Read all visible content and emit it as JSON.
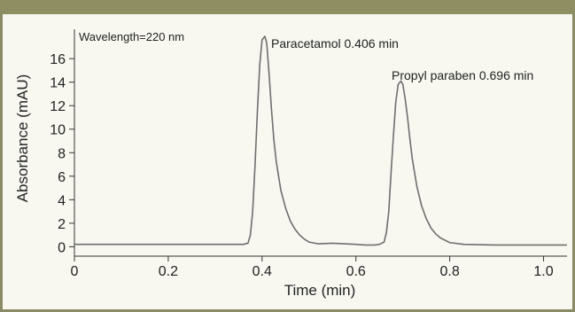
{
  "chart_data": {
    "type": "line",
    "title": "",
    "xlabel": "Time (min)",
    "ylabel": "Absorbance (mAU)",
    "xlim": [
      0,
      1.05
    ],
    "ylim": [
      -0.8,
      18.5
    ],
    "x_ticks": [
      0,
      0.2,
      0.4,
      0.6,
      0.8,
      1.0
    ],
    "x_tick_labels": [
      "0",
      "0.2",
      "0.4",
      "0.6",
      "0.8",
      "1.0"
    ],
    "y_ticks": [
      0,
      2,
      4,
      6,
      8,
      10,
      12,
      14,
      16
    ],
    "y_tick_labels": [
      "0",
      "2",
      "4",
      "6",
      "8",
      "10",
      "12",
      "14",
      "16"
    ],
    "grid": false,
    "legend": "none",
    "annotations": {
      "wavelength": "Wavelength=220 nm",
      "peak1": "Paracetamol 0.406 min",
      "peak2": "Propyl paraben 0.696 min"
    },
    "peaks": [
      {
        "name": "Paracetamol",
        "retention_time": 0.406,
        "height": 17.9
      },
      {
        "name": "Propyl paraben",
        "retention_time": 0.696,
        "height": 14.1
      }
    ],
    "series": [
      {
        "x": [
          0,
          0.36,
          0.37,
          0.375,
          0.38,
          0.385,
          0.39,
          0.395,
          0.4,
          0.406,
          0.41,
          0.415,
          0.42,
          0.425,
          0.43,
          0.44,
          0.45,
          0.46,
          0.47,
          0.48,
          0.49,
          0.5,
          0.52,
          0.55,
          0.6,
          0.62,
          0.64,
          0.65,
          0.66,
          0.665,
          0.67,
          0.675,
          0.68,
          0.685,
          0.69,
          0.696,
          0.7,
          0.705,
          0.71,
          0.715,
          0.72,
          0.73,
          0.74,
          0.75,
          0.76,
          0.77,
          0.78,
          0.8,
          0.83,
          0.9,
          1.05
        ],
        "y": [
          0.2,
          0.2,
          0.3,
          1.0,
          3.0,
          7.0,
          11.5,
          15.5,
          17.6,
          17.9,
          17.3,
          14.6,
          11.7,
          9.2,
          7.3,
          4.8,
          3.3,
          2.2,
          1.5,
          1.0,
          0.65,
          0.4,
          0.25,
          0.3,
          0.2,
          0.15,
          0.15,
          0.2,
          0.4,
          1.2,
          3.0,
          6.3,
          9.5,
          12.3,
          13.8,
          14.1,
          13.8,
          12.6,
          11.0,
          9.2,
          7.5,
          5.1,
          3.5,
          2.4,
          1.6,
          1.1,
          0.75,
          0.35,
          0.2,
          0.15,
          0.15
        ]
      }
    ]
  }
}
